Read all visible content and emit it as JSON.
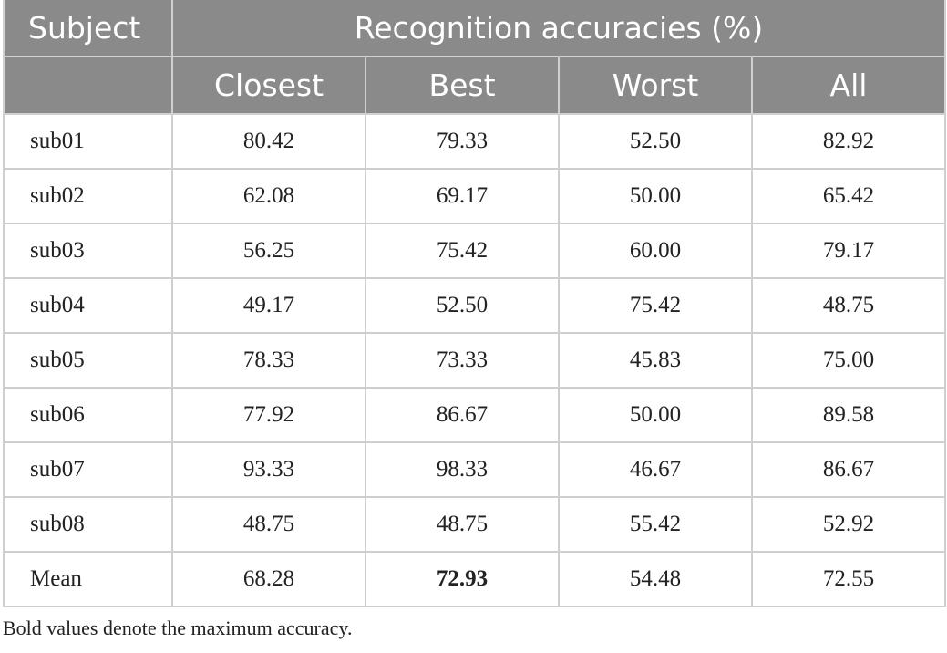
{
  "table": {
    "header": {
      "subject": "Subject",
      "group": "Recognition accuracies (%)",
      "columns": [
        "Closest",
        "Best",
        "Worst",
        "All"
      ]
    },
    "rows": [
      [
        "sub01",
        "80.42",
        "79.33",
        "52.50",
        "82.92"
      ],
      [
        "sub02",
        "62.08",
        "69.17",
        "50.00",
        "65.42"
      ],
      [
        "sub03",
        "56.25",
        "75.42",
        "60.00",
        "79.17"
      ],
      [
        "sub04",
        "49.17",
        "52.50",
        "75.42",
        "48.75"
      ],
      [
        "sub05",
        "78.33",
        "73.33",
        "45.83",
        "75.00"
      ],
      [
        "sub06",
        "77.92",
        "86.67",
        "50.00",
        "89.58"
      ],
      [
        "sub07",
        "93.33",
        "98.33",
        "46.67",
        "86.67"
      ],
      [
        "sub08",
        "48.75",
        "48.75",
        "55.42",
        "52.92"
      ],
      [
        "Mean",
        "68.28",
        "72.93",
        "54.48",
        "72.55"
      ]
    ]
  },
  "footnote": "Bold values denote the maximum accuracy."
}
